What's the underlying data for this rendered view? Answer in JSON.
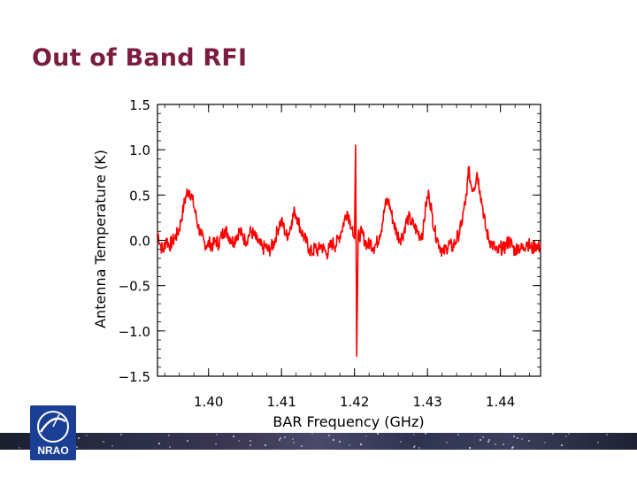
{
  "slide": {
    "title": "Out of Band RFI",
    "logo_text": "NRAO"
  },
  "colors": {
    "title": "#7b1d40",
    "series": "#ff0000",
    "logo_blue": "#1b3f94"
  },
  "chart_data": {
    "type": "line",
    "title": "",
    "xlabel": "BAR Frequency  (GHz)",
    "ylabel": "Antenna Temperature (K)",
    "xlim": [
      1.393,
      1.4455
    ],
    "ylim": [
      -1.5,
      1.5
    ],
    "x_ticks": [
      {
        "value": 1.4,
        "label": "1.40"
      },
      {
        "value": 1.41,
        "label": "1.41"
      },
      {
        "value": 1.42,
        "label": "1.42"
      },
      {
        "value": 1.43,
        "label": "1.43"
      },
      {
        "value": 1.44,
        "label": "1.44"
      }
    ],
    "y_ticks": [
      {
        "value": 1.5,
        "label": "1.5"
      },
      {
        "value": 1.0,
        "label": "1.0"
      },
      {
        "value": 0.5,
        "label": "0.5"
      },
      {
        "value": 0.0,
        "label": "0.0"
      },
      {
        "value": -0.5,
        "label": "−0.5"
      },
      {
        "value": -1.0,
        "label": "−1.0"
      },
      {
        "value": -1.5,
        "label": "−1.5"
      }
    ],
    "grid": false,
    "series": [
      {
        "color": "#ff0000",
        "points": [
          [
            1.393,
            0.1
          ],
          [
            1.3934,
            -0.05
          ],
          [
            1.3938,
            -0.12
          ],
          [
            1.3942,
            0.02
          ],
          [
            1.3946,
            -0.06
          ],
          [
            1.395,
            -0.02
          ],
          [
            1.3954,
            0.03
          ],
          [
            1.3958,
            0.08
          ],
          [
            1.3962,
            0.2
          ],
          [
            1.3966,
            0.38
          ],
          [
            1.397,
            0.52
          ],
          [
            1.3974,
            0.55
          ],
          [
            1.3978,
            0.45
          ],
          [
            1.3982,
            0.3
          ],
          [
            1.3986,
            0.15
          ],
          [
            1.399,
            0.05
          ],
          [
            1.3994,
            -0.02
          ],
          [
            1.3998,
            -0.05
          ],
          [
            1.4002,
            -0.03
          ],
          [
            1.4006,
            -0.06
          ],
          [
            1.401,
            0.0
          ],
          [
            1.4014,
            -0.04
          ],
          [
            1.4018,
            0.05
          ],
          [
            1.4022,
            0.12
          ],
          [
            1.4026,
            0.08
          ],
          [
            1.403,
            0.02
          ],
          [
            1.4034,
            -0.02
          ],
          [
            1.4038,
            0.05
          ],
          [
            1.4042,
            0.1
          ],
          [
            1.4046,
            0.06
          ],
          [
            1.405,
            0.0
          ],
          [
            1.4054,
            0.03
          ],
          [
            1.4058,
            0.1
          ],
          [
            1.4062,
            0.06
          ],
          [
            1.4066,
            0.0
          ],
          [
            1.407,
            -0.04
          ],
          [
            1.4074,
            -0.1
          ],
          [
            1.4078,
            -0.06
          ],
          [
            1.4082,
            -0.12
          ],
          [
            1.4086,
            -0.08
          ],
          [
            1.409,
            -0.02
          ],
          [
            1.4094,
            0.1
          ],
          [
            1.4098,
            0.2
          ],
          [
            1.4102,
            0.18
          ],
          [
            1.4106,
            0.05
          ],
          [
            1.411,
            0.08
          ],
          [
            1.4114,
            0.22
          ],
          [
            1.4118,
            0.32
          ],
          [
            1.4122,
            0.25
          ],
          [
            1.4126,
            0.12
          ],
          [
            1.413,
            0.05
          ],
          [
            1.4134,
            -0.02
          ],
          [
            1.4138,
            -0.1
          ],
          [
            1.4142,
            -0.14
          ],
          [
            1.4146,
            -0.08
          ],
          [
            1.415,
            -0.12
          ],
          [
            1.4154,
            -0.05
          ],
          [
            1.4158,
            -0.1
          ],
          [
            1.4162,
            -0.15
          ],
          [
            1.4166,
            -0.08
          ],
          [
            1.417,
            -0.03
          ],
          [
            1.4174,
            -0.06
          ],
          [
            1.4178,
            0.02
          ],
          [
            1.4182,
            0.1
          ],
          [
            1.4186,
            0.22
          ],
          [
            1.419,
            0.32
          ],
          [
            1.4194,
            0.22
          ],
          [
            1.4198,
            0.05
          ],
          [
            1.42,
            0.02
          ],
          [
            1.42015,
            1.05
          ],
          [
            1.4203,
            -1.28
          ],
          [
            1.4205,
            0.05
          ],
          [
            1.421,
            0.08
          ],
          [
            1.4214,
            0.0
          ],
          [
            1.4218,
            -0.06
          ],
          [
            1.4222,
            -0.02
          ],
          [
            1.4226,
            -0.08
          ],
          [
            1.423,
            -0.04
          ],
          [
            1.4234,
            0.05
          ],
          [
            1.4238,
            0.18
          ],
          [
            1.4242,
            0.38
          ],
          [
            1.4246,
            0.45
          ],
          [
            1.425,
            0.32
          ],
          [
            1.4254,
            0.18
          ],
          [
            1.4258,
            0.08
          ],
          [
            1.4262,
            0.02
          ],
          [
            1.4266,
            0.05
          ],
          [
            1.427,
            0.18
          ],
          [
            1.4274,
            0.25
          ],
          [
            1.4278,
            0.2
          ],
          [
            1.4282,
            0.15
          ],
          [
            1.4286,
            0.1
          ],
          [
            1.429,
            0.05
          ],
          [
            1.4294,
            0.1
          ],
          [
            1.4298,
            0.4
          ],
          [
            1.4302,
            0.52
          ],
          [
            1.4306,
            0.3
          ],
          [
            1.431,
            0.1
          ],
          [
            1.4314,
            0.0
          ],
          [
            1.4318,
            -0.08
          ],
          [
            1.4322,
            -0.14
          ],
          [
            1.4326,
            -0.08
          ],
          [
            1.433,
            -0.04
          ],
          [
            1.4334,
            -0.08
          ],
          [
            1.4338,
            -0.02
          ],
          [
            1.4342,
            0.05
          ],
          [
            1.4346,
            0.15
          ],
          [
            1.435,
            0.35
          ],
          [
            1.4354,
            0.5
          ],
          [
            1.4356,
            0.8
          ],
          [
            1.436,
            0.6
          ],
          [
            1.4364,
            0.58
          ],
          [
            1.4368,
            0.75
          ],
          [
            1.4372,
            0.55
          ],
          [
            1.4376,
            0.35
          ],
          [
            1.438,
            0.12
          ],
          [
            1.4384,
            0.02
          ],
          [
            1.4388,
            -0.04
          ],
          [
            1.4392,
            -0.08
          ],
          [
            1.4396,
            -0.14
          ],
          [
            1.44,
            -0.08
          ],
          [
            1.4404,
            -0.1
          ],
          [
            1.4408,
            -0.05
          ],
          [
            1.4412,
            0.0
          ],
          [
            1.4416,
            -0.06
          ],
          [
            1.442,
            -0.12
          ],
          [
            1.4424,
            -0.06
          ],
          [
            1.4428,
            -0.1
          ],
          [
            1.4432,
            -0.08
          ],
          [
            1.4436,
            -0.02
          ],
          [
            1.444,
            -0.06
          ],
          [
            1.4444,
            -0.1
          ],
          [
            1.4448,
            -0.04
          ],
          [
            1.4452,
            -0.08
          ],
          [
            1.4455,
            -0.06
          ]
        ]
      }
    ]
  }
}
